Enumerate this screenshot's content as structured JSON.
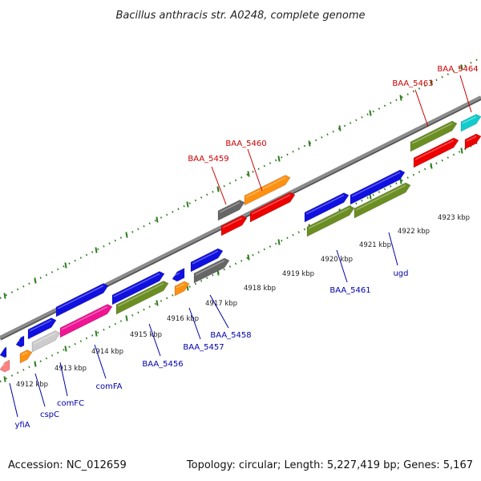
{
  "title": "Bacillus anthracis str. A0248, complete genome",
  "footer": {
    "accession": "Accession: NC_012659",
    "summary": "Topology: circular; Length: 5,227,419 bp; Genes: 5,167"
  },
  "colors": {
    "backbone": "#8c8c8c",
    "tick": "#2e7d1f",
    "label_forward": "#cc0000",
    "label_reverse": "#0000aa"
  },
  "kbp_ticks": [
    {
      "label": "4912 kbp"
    },
    {
      "label": "4913 kbp"
    },
    {
      "label": "4914 kbp"
    },
    {
      "label": "4915 kbp"
    },
    {
      "label": "4916 kbp"
    },
    {
      "label": "4917 kbp"
    },
    {
      "label": "4918 kbp"
    },
    {
      "label": "4919 kbp"
    },
    {
      "label": "4920 kbp"
    },
    {
      "label": "4921 kbp"
    },
    {
      "label": "4922 kbp"
    },
    {
      "label": "4923 kbp"
    }
  ],
  "gene_labels": [
    {
      "name": "yfiA",
      "strand": "reverse"
    },
    {
      "name": "cspC",
      "strand": "reverse"
    },
    {
      "name": "comFC",
      "strand": "reverse"
    },
    {
      "name": "comFA",
      "strand": "reverse"
    },
    {
      "name": "BAA_5456",
      "strand": "reverse"
    },
    {
      "name": "BAA_5457",
      "strand": "reverse"
    },
    {
      "name": "BAA_5458",
      "strand": "reverse"
    },
    {
      "name": "BAA_5461",
      "strand": "reverse"
    },
    {
      "name": "ugd",
      "strand": "reverse"
    },
    {
      "name": "BAA_5459",
      "strand": "forward"
    },
    {
      "name": "BAA_5460",
      "strand": "forward"
    },
    {
      "name": "BAA_5463",
      "strand": "forward"
    },
    {
      "name": "BAA_5464",
      "strand": "forward"
    }
  ],
  "feature_colors": {
    "blue": "#1010e0",
    "red": "#ee0000",
    "olive": "#6b8e23",
    "orange": "#ff9010",
    "gray": "#666666",
    "lightgray": "#cccccc",
    "magenta": "#ee1493",
    "pink": "#ff8080",
    "cyan": "#10cccc"
  }
}
